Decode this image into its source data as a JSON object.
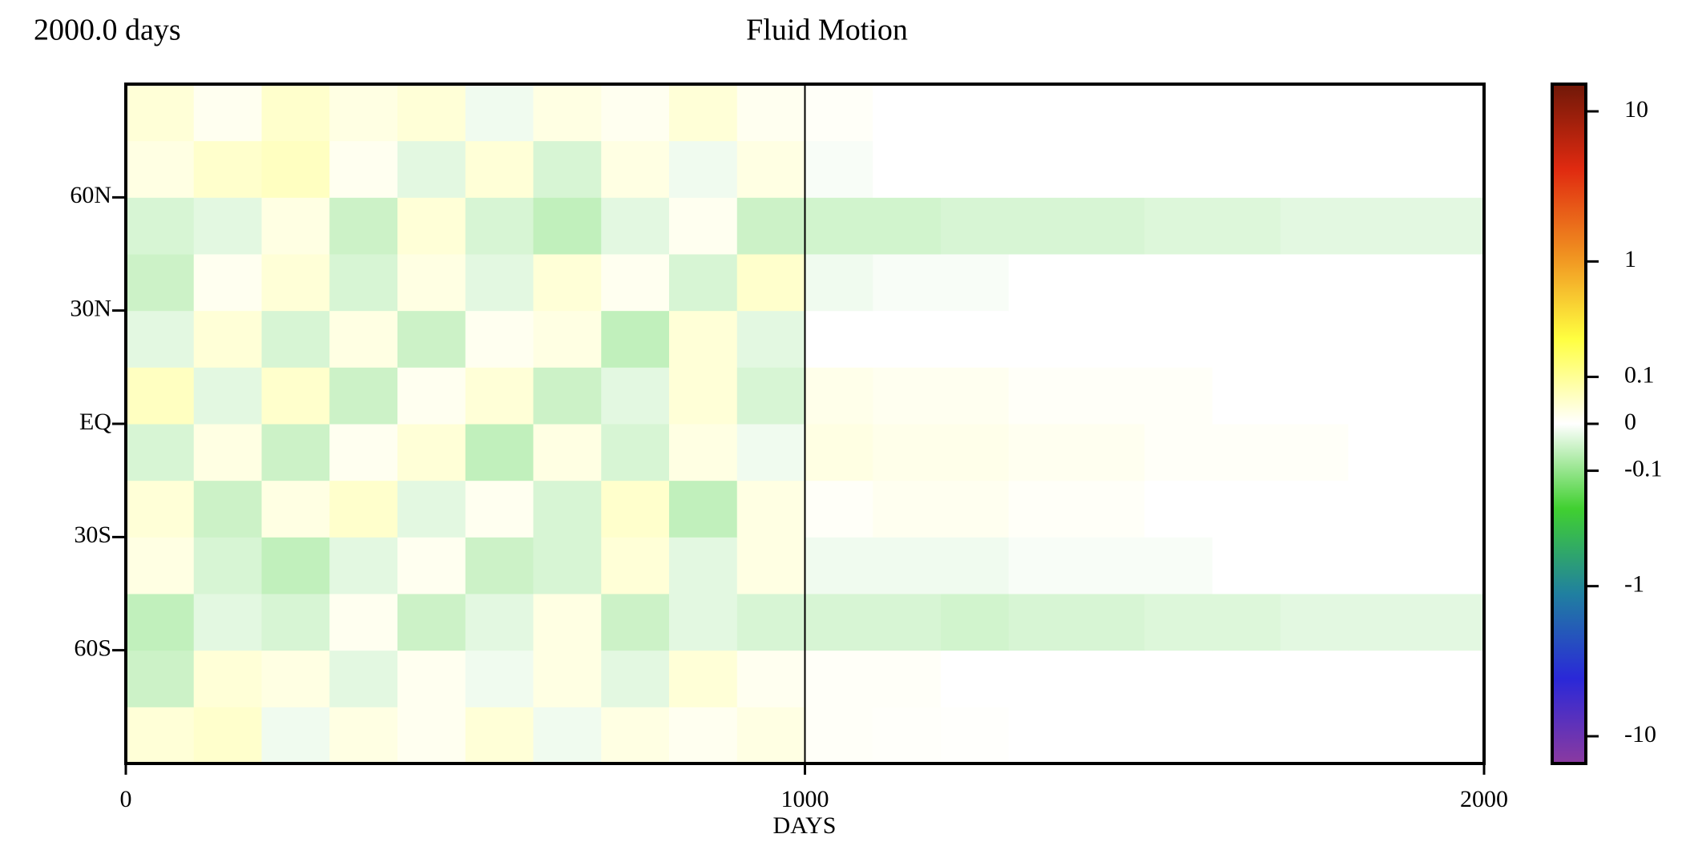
{
  "chart_data": {
    "type": "heatmap",
    "title": "Fluid Motion",
    "corner_label": "2000.0 days",
    "x_label": "DAYS",
    "xlim": [
      0,
      2000
    ],
    "xticks": [
      0,
      1000,
      2000
    ],
    "vlines": [
      1000
    ],
    "ylim": [
      -90,
      90
    ],
    "yticks": [
      {
        "value": 60,
        "label": "60N"
      },
      {
        "value": 30,
        "label": "30N"
      },
      {
        "value": 0,
        "label": "EQ"
      },
      {
        "value": -30,
        "label": "30S"
      },
      {
        "value": -60,
        "label": "60S"
      }
    ],
    "x_edges": [
      0,
      100,
      200,
      300,
      400,
      500,
      600,
      700,
      800,
      900,
      1000,
      1100,
      1200,
      1300,
      1400,
      1500,
      1600,
      1700,
      1800,
      1900,
      2000
    ],
    "y_edges": [
      -90,
      -75,
      -60,
      -45,
      -30,
      -15,
      0,
      15,
      30,
      45,
      60,
      75,
      90
    ],
    "z": [
      [
        0.03,
        0.04,
        -0.01,
        0.02,
        0.01,
        0.03,
        -0.01,
        0.02,
        0.01,
        0.02,
        0.005,
        0.003,
        0.002,
        0,
        0,
        0,
        0,
        0,
        0,
        0
      ],
      [
        -0.04,
        0.03,
        0.02,
        -0.02,
        0.01,
        -0.01,
        0.02,
        -0.02,
        0.03,
        0.01,
        0.005,
        0.005,
        0,
        0,
        0,
        0,
        0,
        0,
        0,
        0
      ],
      [
        -0.05,
        -0.02,
        -0.03,
        0.01,
        -0.04,
        -0.02,
        0.02,
        -0.04,
        -0.02,
        -0.03,
        -0.03,
        -0.03,
        -0.035,
        -0.03,
        -0.03,
        -0.025,
        -0.025,
        -0.02,
        -0.02,
        -0.02
      ],
      [
        0.02,
        -0.03,
        -0.05,
        -0.02,
        0.01,
        -0.04,
        -0.03,
        0.03,
        -0.02,
        0.02,
        -0.01,
        -0.01,
        -0.01,
        -0.005,
        -0.005,
        -0.005,
        0,
        0,
        0,
        0
      ],
      [
        0.03,
        -0.04,
        0.02,
        0.04,
        -0.02,
        0.01,
        -0.03,
        0.04,
        -0.05,
        0.02,
        0.005,
        0.01,
        0.01,
        0.005,
        0.005,
        0,
        0,
        0,
        0,
        0
      ],
      [
        -0.03,
        0.02,
        -0.04,
        0.01,
        0.03,
        -0.05,
        0.02,
        -0.03,
        0.02,
        -0.01,
        0.02,
        0.015,
        0.015,
        0.01,
        0.01,
        0.005,
        0.005,
        0.005,
        0,
        0
      ],
      [
        0.05,
        -0.02,
        0.04,
        -0.04,
        0.01,
        0.03,
        -0.04,
        -0.02,
        0.03,
        -0.03,
        0.015,
        0.01,
        0.01,
        0.005,
        0.005,
        0.005,
        0,
        0,
        0,
        0
      ],
      [
        -0.02,
        0.03,
        -0.03,
        0.02,
        -0.04,
        0.01,
        0.02,
        -0.05,
        0.03,
        -0.02,
        0,
        0,
        0,
        0,
        0,
        0,
        0,
        0,
        0,
        0
      ],
      [
        -0.04,
        0.01,
        0.03,
        -0.03,
        0.02,
        -0.02,
        0.03,
        0.01,
        -0.03,
        0.04,
        -0.01,
        -0.005,
        -0.005,
        0,
        0,
        0,
        0,
        0,
        0,
        0
      ],
      [
        -0.03,
        -0.02,
        0.02,
        -0.04,
        0.03,
        -0.03,
        -0.05,
        -0.02,
        0.01,
        -0.04,
        -0.035,
        -0.035,
        -0.03,
        -0.03,
        -0.03,
        -0.025,
        -0.025,
        -0.02,
        -0.02,
        -0.02
      ],
      [
        0.02,
        0.04,
        0.05,
        0.01,
        -0.02,
        0.03,
        -0.03,
        0.02,
        -0.01,
        0.02,
        -0.005,
        0,
        0,
        0,
        0,
        0,
        0,
        0,
        0,
        0
      ],
      [
        0.03,
        0.01,
        0.04,
        0.02,
        0.03,
        -0.01,
        0.02,
        0.01,
        0.03,
        0.01,
        0.005,
        0,
        0,
        0,
        0,
        0,
        0,
        0,
        0,
        0
      ]
    ],
    "colorbar": {
      "scale": "symlog",
      "linthresh": 0.1,
      "lim": [
        -15,
        15
      ],
      "ticks": [
        10,
        1,
        0.1,
        0,
        -0.1,
        -1,
        -10
      ],
      "colormap": [
        "#8b3aa0",
        "#2a28d8",
        "#2080a0",
        "#40d030",
        "#ffffff",
        "#ffff40",
        "#f09020",
        "#e02a10",
        "#701808"
      ]
    }
  }
}
